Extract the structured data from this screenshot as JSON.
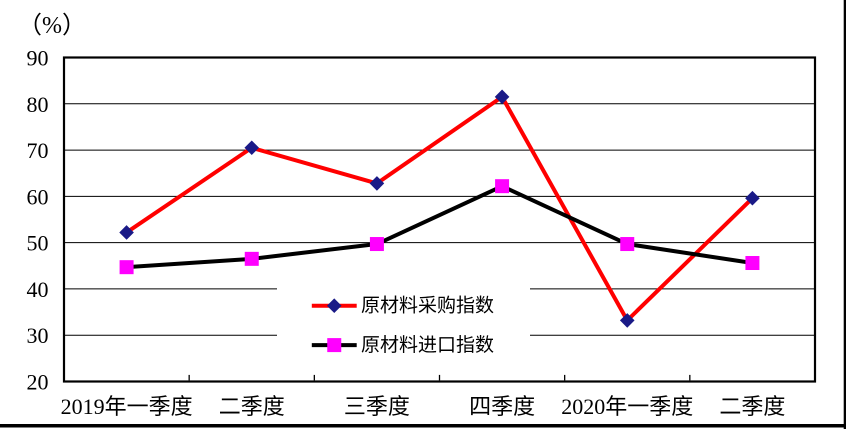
{
  "page": {
    "background": "#ffffff",
    "edge_border_color": "#000000"
  },
  "chart_data": {
    "type": "line",
    "title": "",
    "unit_label": "（%）",
    "xlabel": "",
    "ylabel": "（%）",
    "categories": [
      "2019年一季度",
      "二季度",
      "三季度",
      "四季度",
      "2020年一季度",
      "二季度"
    ],
    "series": [
      {
        "name": "原材料采购指数",
        "values": [
          52.2,
          70.5,
          62.8,
          81.5,
          33.2,
          59.6
        ],
        "line_color": "#ff0000",
        "marker": "diamond",
        "marker_color": "#1a1a87"
      },
      {
        "name": "原材料进口指数",
        "values": [
          44.7,
          46.5,
          49.7,
          62.2,
          49.7,
          45.6
        ],
        "line_color": "#000000",
        "marker": "square",
        "marker_color": "#ff00ff"
      }
    ],
    "ylim": [
      20,
      90
    ],
    "yticks": [
      90,
      80,
      70,
      60,
      50,
      40,
      30,
      20
    ],
    "grid": true,
    "gridline_color": "#000000",
    "axis_color": "#000000",
    "text_color": "#000000",
    "legend_position": "inside-bottom-center"
  }
}
